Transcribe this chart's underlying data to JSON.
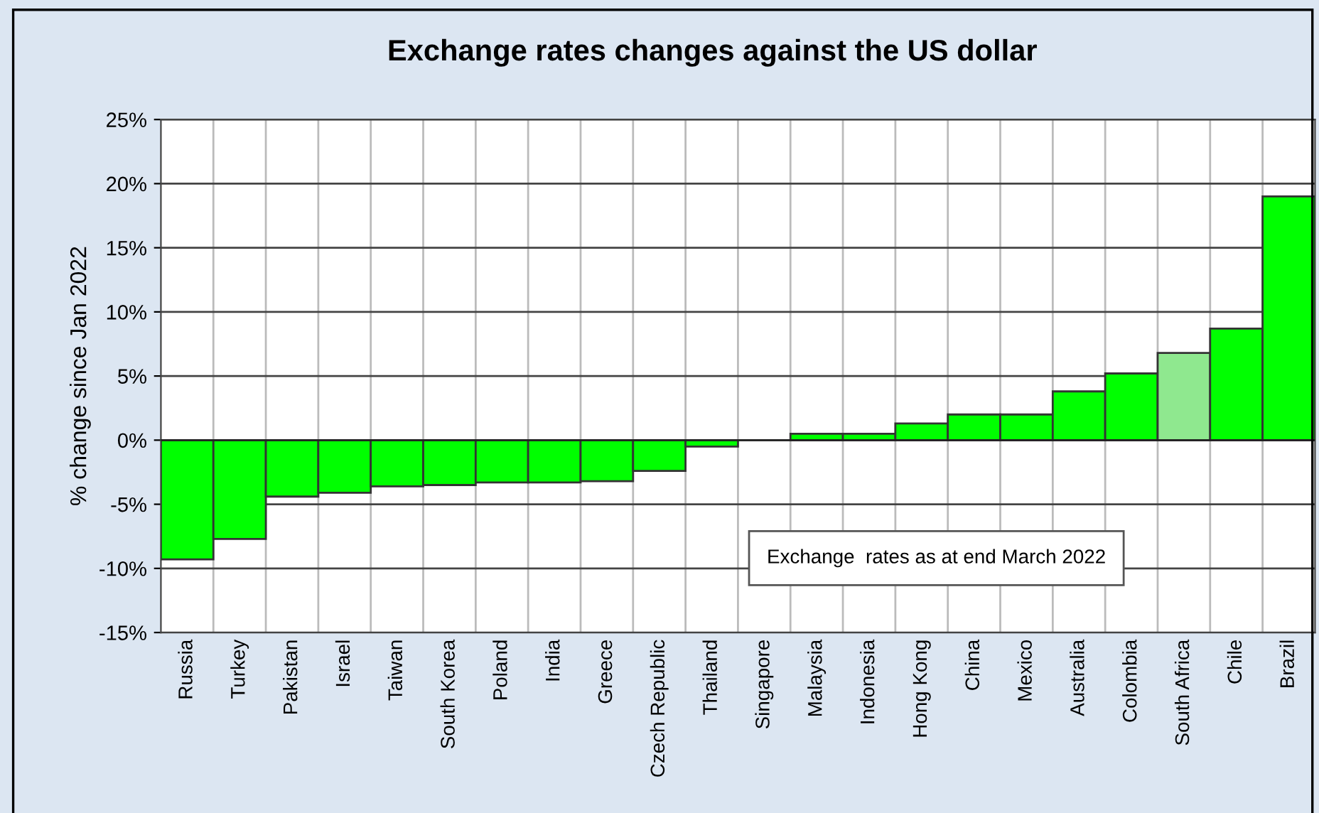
{
  "chart_data": {
    "type": "bar",
    "title": "Exchange rates changes against the US dollar",
    "ylabel": "% change since Jan 2022",
    "categories": [
      "Russia",
      "Turkey",
      "Pakistan",
      "Israel",
      "Taiwan",
      "South Korea",
      "Poland",
      "India",
      "Greece",
      "Czech Republic",
      "Thailand",
      "Singapore",
      "Malaysia",
      "Indonesia",
      "Hong Kong",
      "China",
      "Mexico",
      "Australia",
      "Colombia",
      "South Africa",
      "Chile",
      "Brazil"
    ],
    "values": [
      -9.3,
      -7.7,
      -4.4,
      -4.1,
      -3.6,
      -3.5,
      -3.3,
      -3.3,
      -3.2,
      -2.4,
      -0.5,
      null,
      0.5,
      0.5,
      1.3,
      2.0,
      2.0,
      3.8,
      5.2,
      6.8,
      8.7,
      19.0
    ],
    "colors": [
      "#00ff00",
      "#00ff00",
      "#00ff00",
      "#00ff00",
      "#00ff00",
      "#00ff00",
      "#00ff00",
      "#00ff00",
      "#00ff00",
      "#00ff00",
      "#00ff00",
      null,
      "#00ff00",
      "#00ff00",
      "#00ff00",
      "#00ff00",
      "#00ff00",
      "#00ff00",
      "#00ff00",
      "#8fe88f",
      "#00ff00",
      "#00ff00"
    ],
    "ylim": [
      -15,
      25
    ],
    "yticks": [
      {
        "value": -15,
        "label": "-15%"
      },
      {
        "value": -10,
        "label": "-10%"
      },
      {
        "value": -5,
        "label": "-5%"
      },
      {
        "value": 0,
        "label": "0%"
      },
      {
        "value": 5,
        "label": "5%"
      },
      {
        "value": 10,
        "label": "10%"
      },
      {
        "value": 15,
        "label": "15%"
      },
      {
        "value": 20,
        "label": "20%"
      },
      {
        "value": 25,
        "label": "25%"
      }
    ],
    "grid": true,
    "annotations": [
      "Exchange  rates as at end March 2022"
    ]
  }
}
